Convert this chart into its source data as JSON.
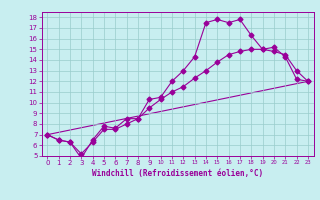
{
  "xlabel": "Windchill (Refroidissement éolien,°C)",
  "bg_color": "#c8eef0",
  "line_color": "#990099",
  "grid_color": "#99cccc",
  "xlim": [
    -0.5,
    23.5
  ],
  "ylim": [
    5,
    18.5
  ],
  "xticks": [
    0,
    1,
    2,
    3,
    4,
    5,
    6,
    7,
    8,
    9,
    10,
    11,
    12,
    13,
    14,
    15,
    16,
    17,
    18,
    19,
    20,
    21,
    22,
    23
  ],
  "yticks": [
    5,
    6,
    7,
    8,
    9,
    10,
    11,
    12,
    13,
    14,
    15,
    16,
    17,
    18
  ],
  "line1_x": [
    0,
    1,
    2,
    3,
    4,
    5,
    6,
    7,
    8,
    9,
    10,
    11,
    12,
    13,
    14,
    15,
    16,
    17,
    18,
    19,
    20,
    21,
    22,
    23
  ],
  "line1_y": [
    7.0,
    6.5,
    6.3,
    4.8,
    6.5,
    7.8,
    7.6,
    8.5,
    8.5,
    10.3,
    10.5,
    12.0,
    13.0,
    14.3,
    17.5,
    17.8,
    17.5,
    17.8,
    16.3,
    15.0,
    15.2,
    14.3,
    12.2,
    12.0
  ],
  "line2_x": [
    0,
    1,
    2,
    3,
    4,
    5,
    6,
    7,
    8,
    9,
    10,
    11,
    12,
    13,
    14,
    15,
    16,
    17,
    18,
    19,
    20,
    21,
    22,
    23
  ],
  "line2_y": [
    7.0,
    6.5,
    6.3,
    5.2,
    6.3,
    7.5,
    7.5,
    8.0,
    8.5,
    9.5,
    10.3,
    11.0,
    11.5,
    12.3,
    13.0,
    13.8,
    14.5,
    14.8,
    15.0,
    15.0,
    14.8,
    14.5,
    13.0,
    12.0
  ],
  "line3_x": [
    0,
    23
  ],
  "line3_y": [
    7.0,
    12.0
  ],
  "marker_size": 2.5,
  "line_width": 0.8,
  "tick_fontsize": 5,
  "xlabel_fontsize": 5.5
}
